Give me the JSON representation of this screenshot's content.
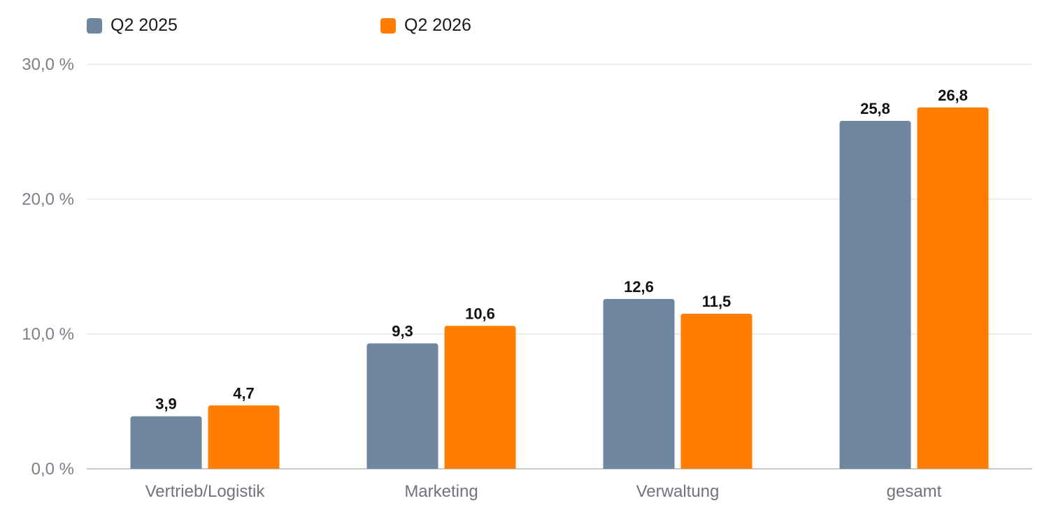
{
  "chart_data": {
    "type": "bar",
    "categories": [
      "Vertrieb/Logistik",
      "Marketing",
      "Verwaltung",
      "gesamt"
    ],
    "series": [
      {
        "name": "Q2 2025",
        "values": [
          3.9,
          9.3,
          12.6,
          25.8
        ],
        "labels": [
          "3,9",
          "9,3",
          "12,6",
          "25,8"
        ],
        "color": "#6f86a1"
      },
      {
        "name": "Q2 2026",
        "values": [
          4.7,
          10.6,
          11.5,
          26.8
        ],
        "labels": [
          "4,7",
          "10,6",
          "11,5",
          "26,8"
        ],
        "color": "#ff7d00"
      }
    ],
    "yticks": [
      0,
      10,
      20,
      30
    ],
    "ytick_labels": [
      "0,0 %",
      "10,0 %",
      "20,0 %",
      "30,0 %"
    ],
    "ylim": [
      0,
      30
    ],
    "grid": true,
    "legend_position": "top-left",
    "colors": {
      "grid": "#e6e6e6",
      "axis": "#c8c8c8"
    }
  }
}
